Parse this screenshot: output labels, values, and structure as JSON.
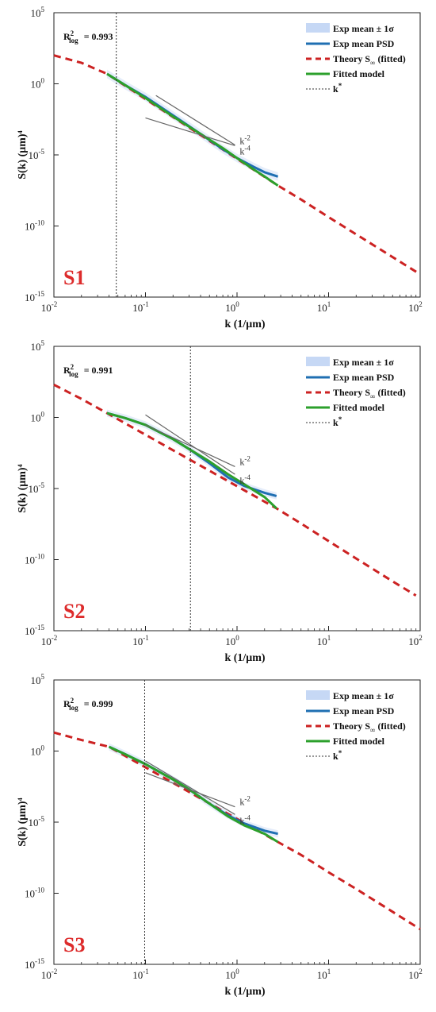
{
  "colors": {
    "band": "#c6d8f5",
    "exp_mean": "#1f6fb2",
    "theory": "#cc2222",
    "fitted": "#2ca02c",
    "kstar": "#333333",
    "slope_lines": "#666666",
    "panel_label": "#dd2b2b"
  },
  "chart_data": [
    {
      "type": "line",
      "panel_label": "S1",
      "r2_text": "= 0.993",
      "xlabel": "k (1/μm)",
      "ylabel": "S(k) (μm)⁴",
      "xscale": "log",
      "yscale": "log",
      "xlim": [
        0.01,
        100
      ],
      "ylim": [
        1e-15,
        100000
      ],
      "x_ticks": [
        0.01,
        0.1,
        1,
        10,
        100
      ],
      "y_ticks": [
        1e-15,
        1e-10,
        1e-05,
        1,
        100000
      ],
      "grid": false,
      "legend_position": "top-right",
      "legend": [
        {
          "key": "band",
          "text": "Exp mean ± 1σ"
        },
        {
          "key": "exp",
          "text": "Exp mean PSD"
        },
        {
          "key": "theory",
          "text": "Theory S∞ (fitted)"
        },
        {
          "key": "fit",
          "text": "Fitted model"
        },
        {
          "key": "kstar",
          "text": "k*"
        }
      ],
      "k_star": 0.048,
      "series": [
        {
          "name": "Exp mean PSD",
          "x": [
            0.038,
            0.06,
            0.1,
            0.2,
            0.4,
            0.7,
            1.0,
            1.5,
            2.0,
            2.8
          ],
          "y": [
            5.0,
            0.8,
            0.12,
            0.006,
            0.0003,
            2.5e-05,
            6e-06,
            1.5e-06,
            6e-07,
            3e-07
          ],
          "band_width_decades": 0.6
        },
        {
          "name": "Theory S∞ (fitted)",
          "x": [
            0.01,
            0.02,
            0.038,
            2.8,
            5,
            10,
            20,
            50,
            100
          ],
          "y": [
            100,
            30,
            5.0,
            7e-08,
            7.3e-09,
            4.2e-10,
            2.6e-11,
            6.5e-13,
            4e-14
          ]
        },
        {
          "name": "Fitted model",
          "x": [
            0.038,
            0.06,
            0.1,
            0.2,
            0.4,
            0.7,
            1.0,
            1.5,
            2.0,
            2.8
          ],
          "y": [
            5.0,
            0.8,
            0.1,
            0.005,
            0.0003,
            3e-05,
            6e-06,
            1e-06,
            3e-07,
            7e-08
          ]
        }
      ],
      "slope_guides": [
        {
          "label": "k",
          "exponent": "-2",
          "x": [
            0.1,
            0.95
          ],
          "y": [
            0.004,
            4.5e-05
          ]
        },
        {
          "label": "k",
          "exponent": "-4",
          "x": [
            0.13,
            0.95
          ],
          "y": [
            0.15,
            5e-05
          ]
        }
      ]
    },
    {
      "type": "line",
      "panel_label": "S2",
      "r2_text": "= 0.991",
      "xlabel": "k (1/μm)",
      "ylabel": "S(k) (μm)⁴",
      "xscale": "log",
      "yscale": "log",
      "xlim": [
        0.01,
        100
      ],
      "ylim": [
        1e-15,
        100000
      ],
      "x_ticks": [
        0.01,
        0.1,
        1,
        10,
        100
      ],
      "y_ticks": [
        1e-15,
        1e-10,
        1e-05,
        1,
        100000
      ],
      "grid": false,
      "legend_position": "top-right",
      "legend": [
        {
          "key": "band",
          "text": "Exp mean ± 1σ"
        },
        {
          "key": "exp",
          "text": "Exp mean PSD"
        },
        {
          "key": "theory",
          "text": "Theory S∞ (fitted)"
        },
        {
          "key": "fit",
          "text": "Fitted model"
        },
        {
          "key": "kstar",
          "text": "k*"
        }
      ],
      "k_star": 0.31,
      "series": [
        {
          "name": "Exp mean PSD",
          "x": [
            0.038,
            0.06,
            0.1,
            0.2,
            0.3,
            0.5,
            0.8,
            1.2,
            2.0,
            2.7
          ],
          "y": [
            2.0,
            0.9,
            0.3,
            0.03,
            0.006,
            0.0006,
            6e-05,
            1.5e-05,
            5e-06,
            3e-06
          ],
          "band_width_decades": 0.5
        },
        {
          "name": "Theory S∞ (fitted)",
          "x": [
            0.01,
            0.02,
            0.038,
            2.7,
            5,
            10,
            20,
            50,
            90
          ],
          "y": [
            200,
            20,
            2.0,
            4e-07,
            3.5e-08,
            2e-09,
            1.2e-10,
            3e-12,
            3e-13
          ]
        },
        {
          "name": "Fitted model",
          "x": [
            0.038,
            0.06,
            0.1,
            0.2,
            0.3,
            0.5,
            0.8,
            1.2,
            2.0,
            2.7
          ],
          "y": [
            2.0,
            0.9,
            0.3,
            0.03,
            0.006,
            0.0008,
            0.0001,
            2e-05,
            2.5e-06,
            4e-07
          ]
        }
      ],
      "slope_guides": [
        {
          "label": "k",
          "exponent": "-2",
          "x": [
            0.1,
            0.95
          ],
          "y": [
            0.3,
            0.00035
          ]
        },
        {
          "label": "k",
          "exponent": "-4",
          "x": [
            0.1,
            0.95
          ],
          "y": [
            1.5,
            0.0001
          ]
        }
      ]
    },
    {
      "type": "line",
      "panel_label": "S3",
      "r2_text": "= 0.999",
      "xlabel": "k (1/μm)",
      "ylabel": "S(k) (μm)⁴",
      "xscale": "log",
      "yscale": "log",
      "xlim": [
        0.01,
        100
      ],
      "ylim": [
        1e-15,
        100000
      ],
      "x_ticks": [
        0.01,
        0.1,
        1,
        10,
        100
      ],
      "y_ticks": [
        1e-15,
        1e-10,
        1e-05,
        1,
        100000
      ],
      "grid": false,
      "legend_position": "top-right",
      "legend": [
        {
          "key": "band",
          "text": "Exp mean ± 1σ"
        },
        {
          "key": "exp",
          "text": "Exp mean PSD"
        },
        {
          "key": "theory",
          "text": "Theory S∞ (fitted)"
        },
        {
          "key": "fit",
          "text": "Fitted model"
        },
        {
          "key": "kstar",
          "text": "k*"
        }
      ],
      "k_star": 0.098,
      "series": [
        {
          "name": "Exp mean PSD",
          "x": [
            0.04,
            0.06,
            0.1,
            0.2,
            0.3,
            0.5,
            0.8,
            1.2,
            2.0,
            2.8
          ],
          "y": [
            2.0,
            0.6,
            0.12,
            0.01,
            0.002,
            0.0002,
            3e-05,
            8e-06,
            2.5e-06,
            1.5e-06
          ],
          "band_width_decades": 0.5
        },
        {
          "name": "Theory S∞ (fitted)",
          "x": [
            0.01,
            0.02,
            0.04,
            2.8,
            5,
            10,
            20,
            50,
            100
          ],
          "y": [
            20,
            6,
            2.0,
            4e-07,
            5e-08,
            3e-09,
            2e-10,
            5e-12,
            3e-13
          ]
        },
        {
          "name": "Fitted model",
          "x": [
            0.04,
            0.06,
            0.1,
            0.2,
            0.3,
            0.5,
            0.8,
            1.2,
            2.0,
            2.8
          ],
          "y": [
            2.0,
            0.6,
            0.12,
            0.01,
            0.002,
            0.0002,
            2.5e-05,
            6e-06,
            1.5e-06,
            4e-07
          ]
        }
      ],
      "slope_guides": [
        {
          "label": "k",
          "exponent": "-2",
          "x": [
            0.1,
            0.95
          ],
          "y": [
            0.03,
            0.00012
          ]
        },
        {
          "label": "k",
          "exponent": "-4",
          "x": [
            0.1,
            0.95
          ],
          "y": [
            0.2,
            3.5e-05
          ]
        }
      ]
    }
  ]
}
